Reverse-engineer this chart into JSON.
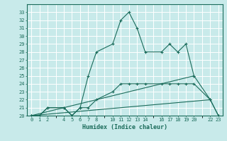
{
  "xlabel": "Humidex (Indice chaleur)",
  "background_color": "#c8eaea",
  "grid_color": "#ffffff",
  "line_color": "#1a6b5a",
  "ylim": [
    20,
    34
  ],
  "ytick_values": [
    20,
    21,
    22,
    23,
    24,
    25,
    26,
    27,
    28,
    29,
    30,
    31,
    32,
    33
  ],
  "xtick_positions": [
    0,
    1,
    2,
    4,
    5,
    6,
    7,
    8,
    10,
    11,
    12,
    13,
    14,
    16,
    17,
    18,
    19,
    20,
    22,
    23
  ],
  "xtick_labels": [
    "0",
    "1",
    "2",
    "4",
    "5",
    "6",
    "7",
    "8",
    "10",
    "11",
    "12",
    "13",
    "14",
    "16",
    "17",
    "18",
    "19",
    "20",
    "22",
    "23"
  ],
  "series": [
    {
      "x": [
        0,
        1,
        2,
        4,
        5,
        6,
        7,
        8,
        10,
        11,
        12,
        13,
        14,
        16,
        17,
        18,
        19,
        20,
        22,
        23
      ],
      "y": [
        20,
        20,
        21,
        21,
        20,
        21,
        25,
        28,
        29,
        32,
        33,
        31,
        28,
        28,
        29,
        28,
        29,
        25,
        22,
        20
      ]
    },
    {
      "x": [
        0,
        1,
        2,
        4,
        5,
        6,
        7,
        8,
        10,
        11,
        12,
        13,
        14,
        16,
        17,
        18,
        19,
        20,
        22,
        23
      ],
      "y": [
        20,
        20,
        21,
        21,
        20,
        21,
        21,
        22,
        23,
        24,
        24,
        24,
        24,
        24,
        24,
        24,
        24,
        24,
        22,
        20
      ]
    },
    {
      "x": [
        0,
        20
      ],
      "y": [
        20,
        25
      ]
    },
    {
      "x": [
        0,
        22
      ],
      "y": [
        20,
        22
      ]
    }
  ]
}
